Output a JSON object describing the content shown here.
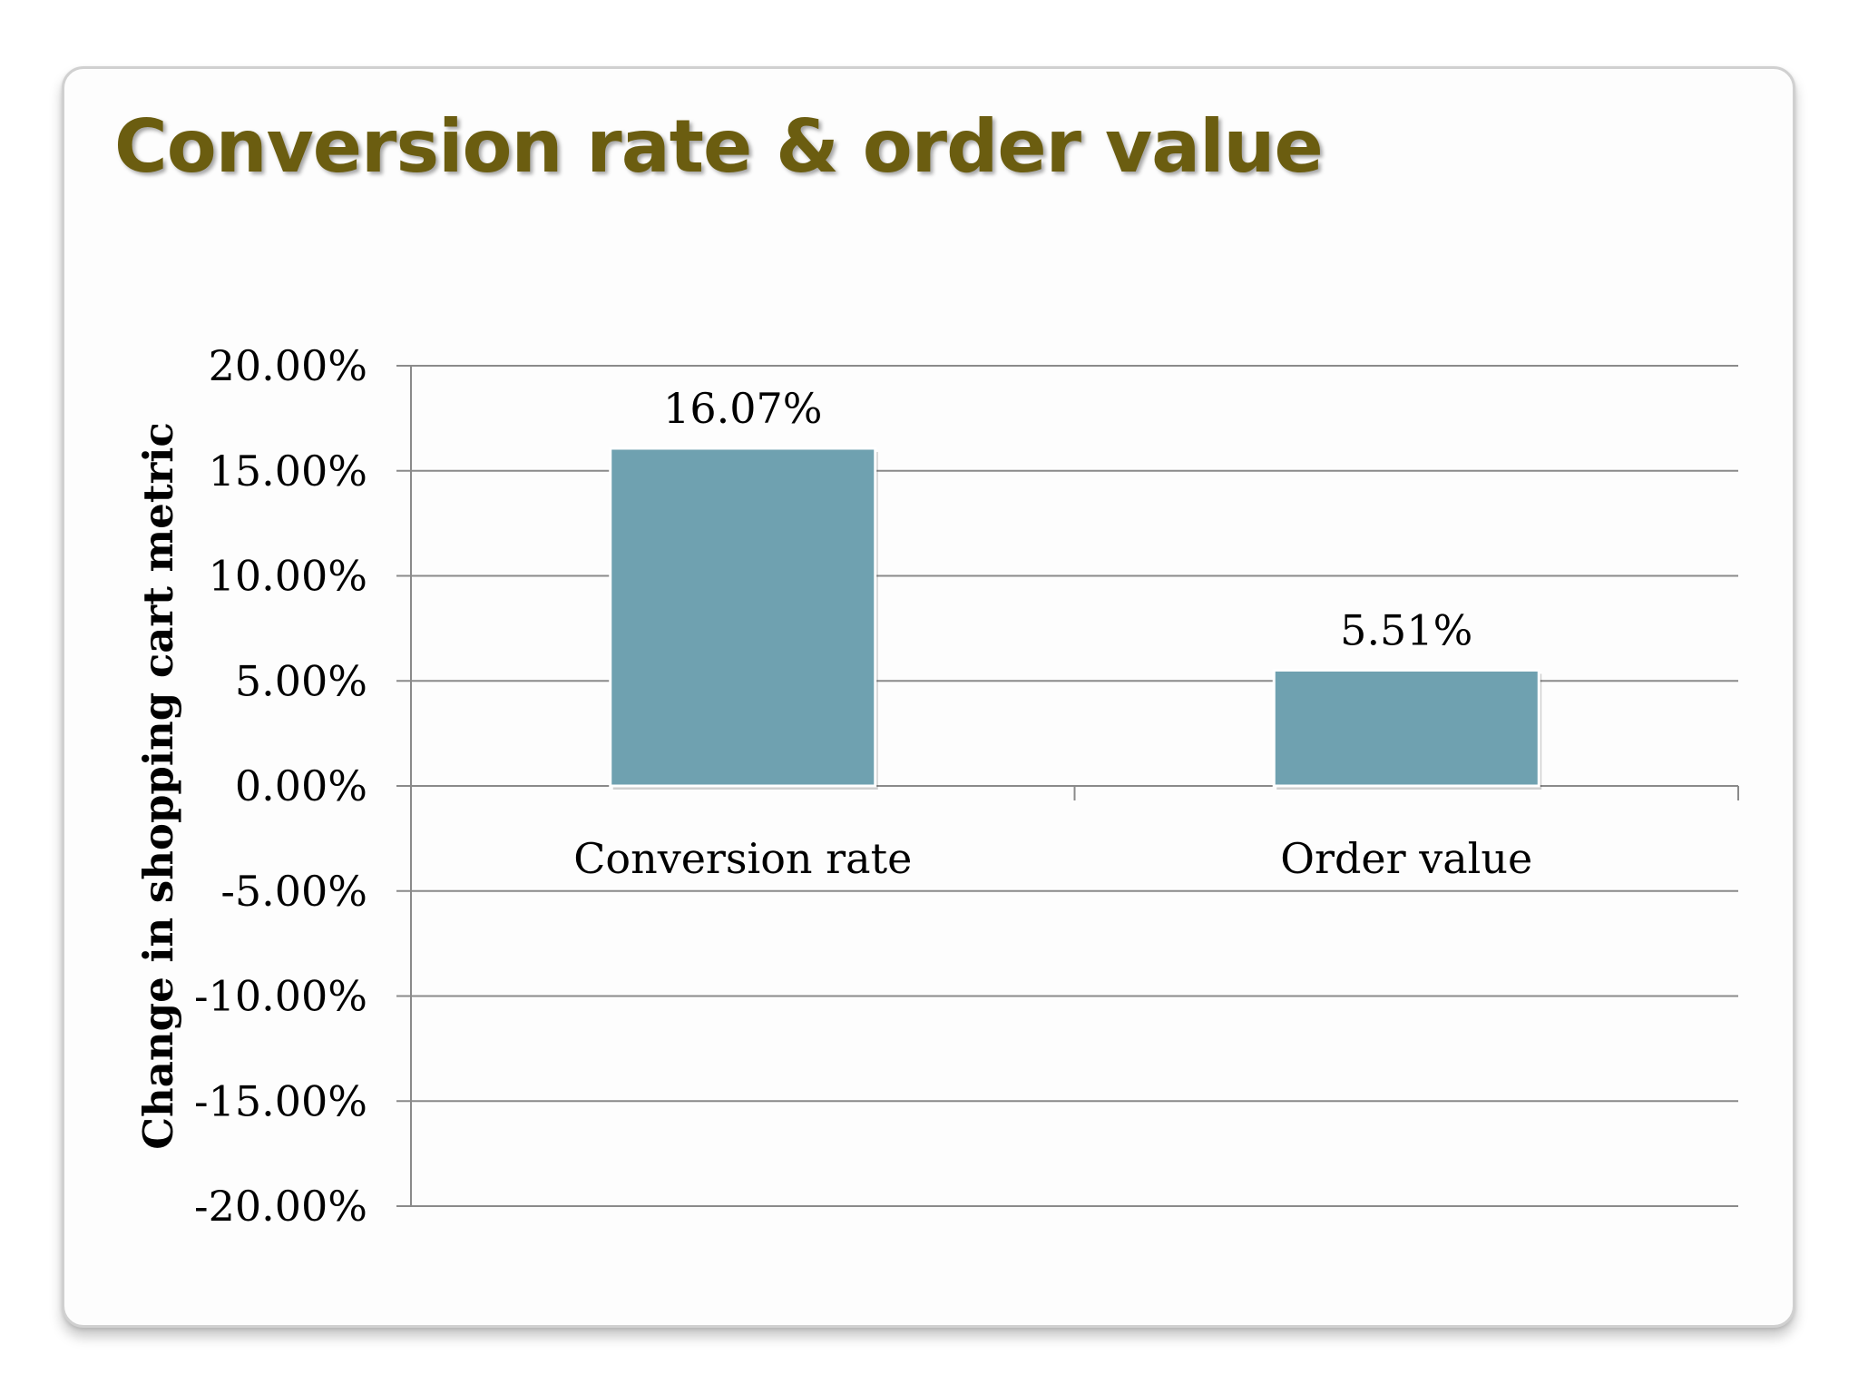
{
  "slide": {
    "title": "Conversion rate & order value"
  },
  "chart_data": {
    "type": "bar",
    "title": "",
    "xlabel": "",
    "ylabel": "Change in shopping cart metric",
    "categories": [
      "Conversion rate",
      "Order value"
    ],
    "values": [
      16.07,
      5.51
    ],
    "data_labels": [
      "16.07%",
      "5.51%"
    ],
    "ylim": [
      -20,
      20
    ],
    "y_ticks": [
      20,
      15,
      10,
      5,
      0,
      -5,
      -10,
      -15,
      -20
    ],
    "y_tick_labels": [
      "20.00%",
      "15.00%",
      "10.00%",
      "5.00%",
      "0.00%",
      "-5.00%",
      "-10.00%",
      "-15.00%",
      "-20.00%"
    ],
    "grid": true,
    "legend": "none",
    "bar_color": "#6fa1b0"
  }
}
